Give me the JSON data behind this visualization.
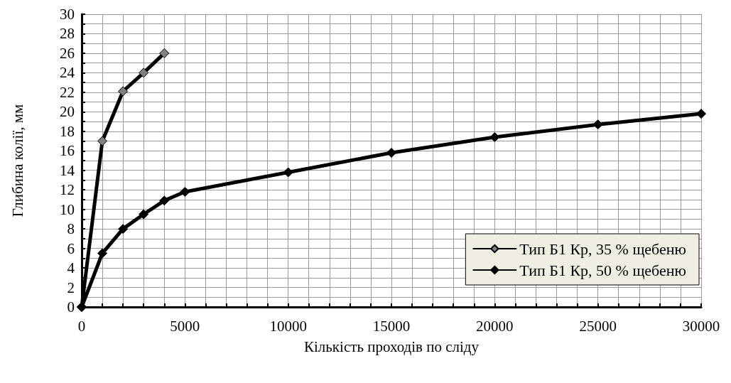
{
  "chart_data": {
    "type": "line",
    "xlabel": "Кількість проходів по сліду",
    "ylabel": "Глибина колії, мм",
    "series": [
      {
        "name": "Тип Б1 Кр, 35 % щебеню",
        "color": "#808080",
        "x": [
          0,
          1000,
          2000,
          3000,
          4000
        ],
        "values": [
          0,
          17,
          22.1,
          24,
          26
        ]
      },
      {
        "name": "Тип Б1 Кр, 50 % щебеню",
        "color": "#000000",
        "x": [
          0,
          1000,
          2000,
          3000,
          4000,
          5000,
          10000,
          15000,
          20000,
          25000,
          30000
        ],
        "values": [
          0,
          5.5,
          8,
          9.5,
          10.9,
          11.8,
          13.8,
          15.8,
          17.4,
          18.7,
          19.8
        ]
      }
    ],
    "xlim": [
      0,
      30000
    ],
    "xticks": [
      0,
      {
        "value": 1000,
        "label": null
      },
      {
        "value": 2000,
        "label": null
      },
      {
        "value": 3000,
        "label": null
      },
      {
        "value": 4000,
        "label": null
      },
      5000,
      {
        "value": 6000,
        "label": null
      },
      {
        "value": 7000,
        "label": null
      },
      {
        "value": 8000,
        "label": null
      },
      {
        "value": 9000,
        "label": null
      },
      10000,
      {
        "value": 11000,
        "label": null
      },
      {
        "value": 12000,
        "label": null
      },
      {
        "value": 13000,
        "label": null
      },
      {
        "value": 14000,
        "label": null
      },
      15000,
      {
        "value": 16000,
        "label": null
      },
      {
        "value": 17000,
        "label": null
      },
      {
        "value": 18000,
        "label": null
      },
      {
        "value": 19000,
        "label": null
      },
      20000,
      {
        "value": 21000,
        "label": null
      },
      {
        "value": 22000,
        "label": null
      },
      {
        "value": 23000,
        "label": null
      },
      {
        "value": 24000,
        "label": null
      },
      25000,
      {
        "value": 26000,
        "label": null
      },
      {
        "value": 27000,
        "label": null
      },
      {
        "value": 28000,
        "label": null
      },
      {
        "value": 29000,
        "label": null
      },
      30000
    ],
    "ylim": [
      0,
      30
    ],
    "yticks": [
      0,
      {
        "value": 1,
        "label": null
      },
      2,
      {
        "value": 3,
        "label": null
      },
      4,
      {
        "value": 5,
        "label": null
      },
      6,
      {
        "value": 7,
        "label": null
      },
      8,
      {
        "value": 9,
        "label": null
      },
      10,
      {
        "value": 11,
        "label": null
      },
      12,
      {
        "value": 13,
        "label": null
      },
      14,
      {
        "value": 15,
        "label": null
      },
      16,
      {
        "value": 17,
        "label": null
      },
      18,
      {
        "value": 19,
        "label": null
      },
      20,
      {
        "value": 21,
        "label": null
      },
      22,
      {
        "value": 23,
        "label": null
      },
      24,
      {
        "value": 25,
        "label": null
      },
      26,
      {
        "value": 27,
        "label": null
      },
      28,
      {
        "value": 29,
        "label": null
      },
      30
    ],
    "grid": true,
    "legend": "bottom right",
    "marker": "diamond",
    "line_style": "solid"
  }
}
